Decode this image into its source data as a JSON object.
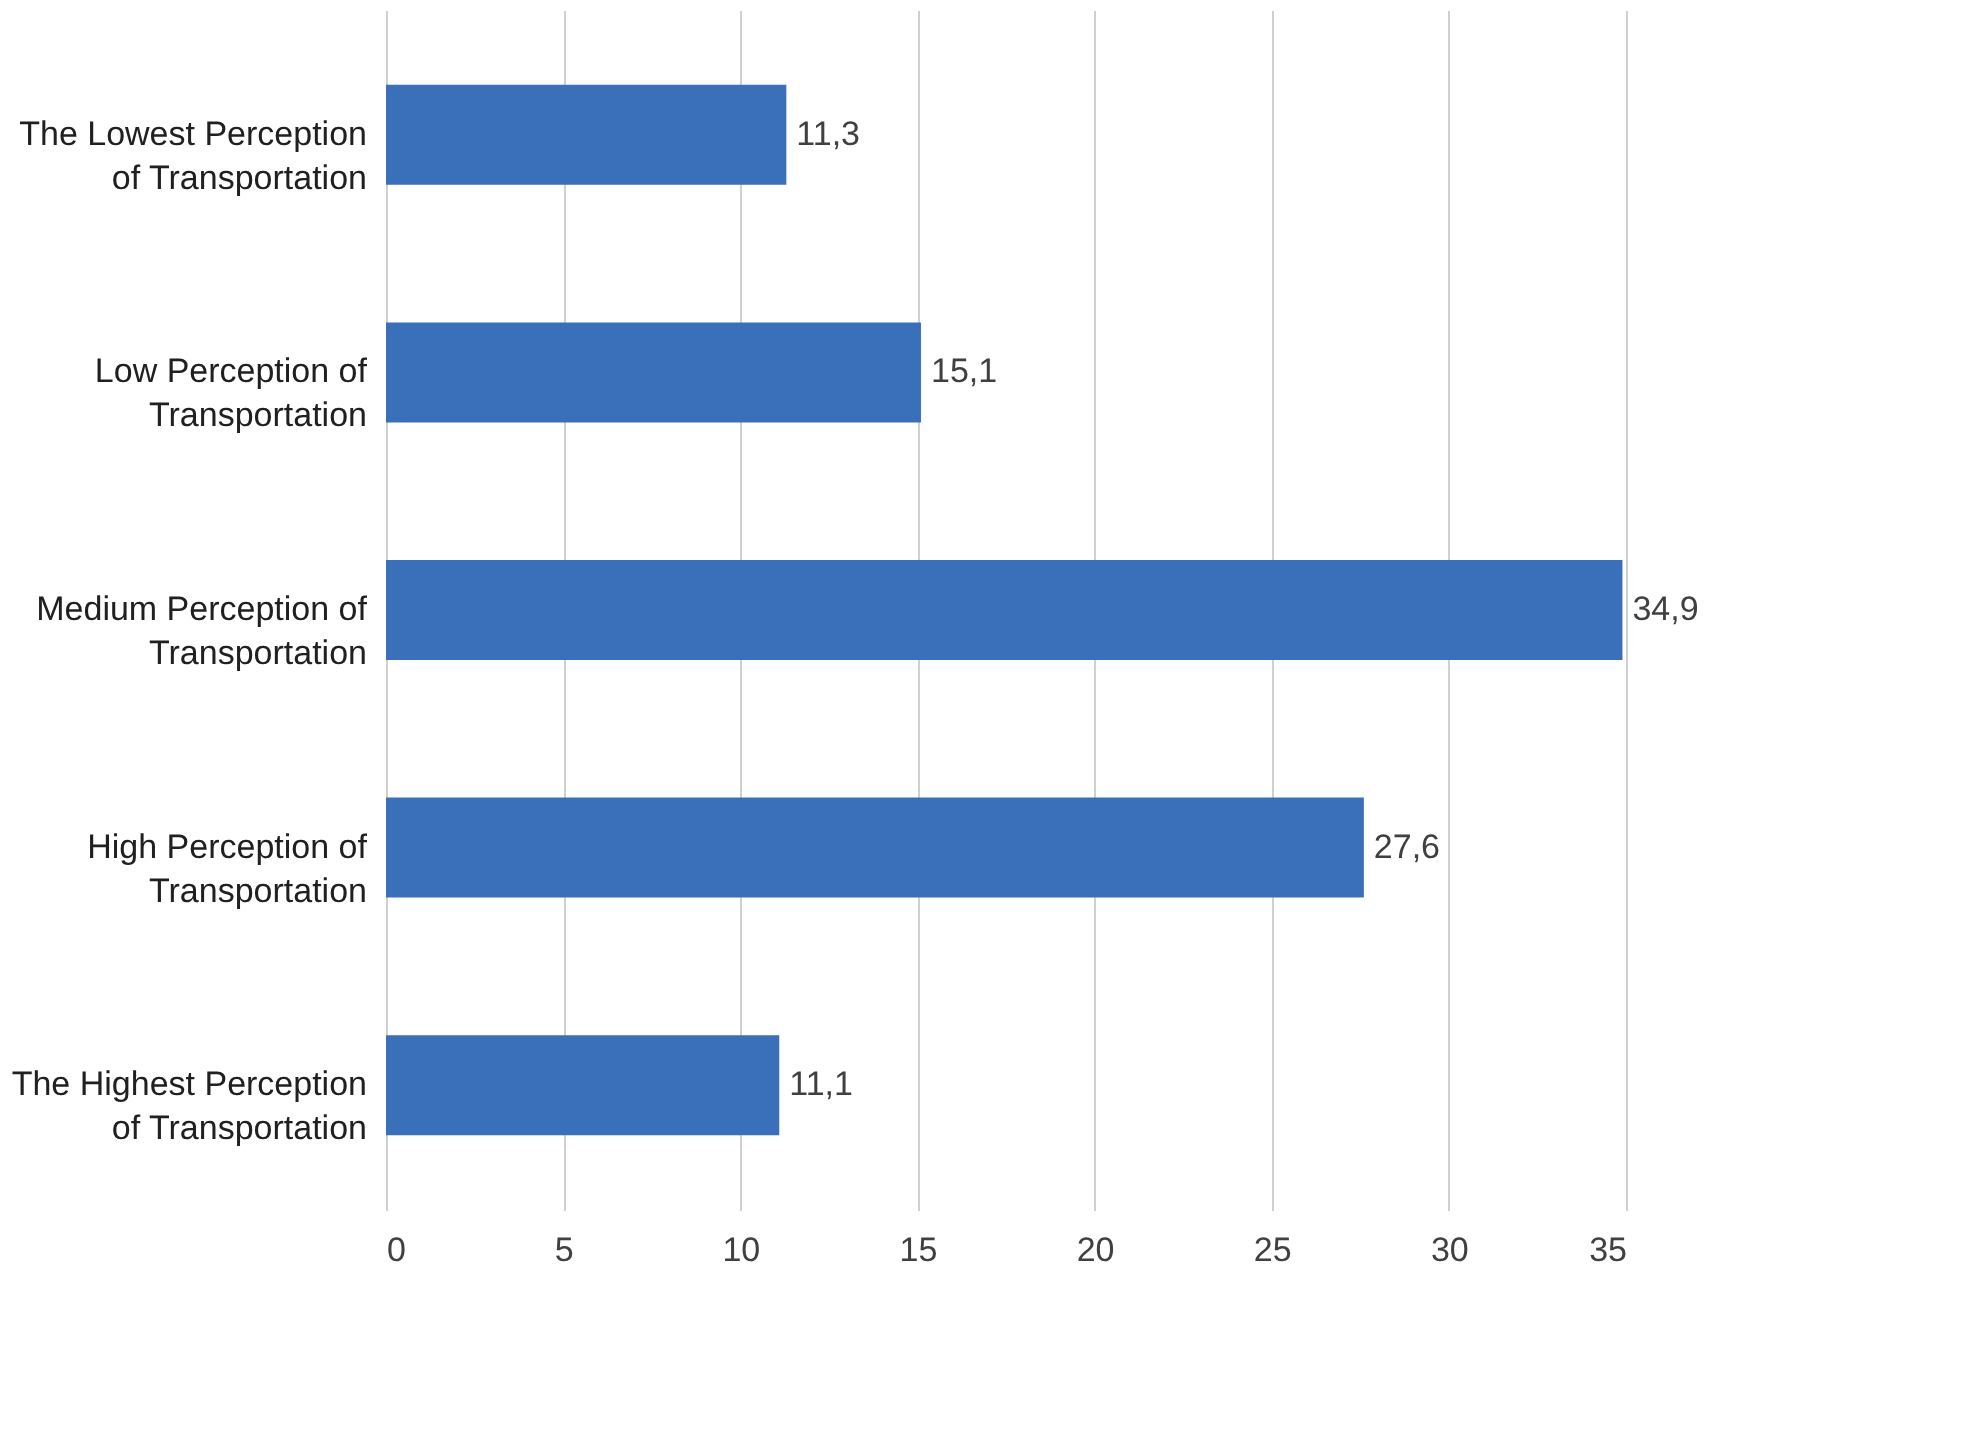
{
  "chart_data": {
    "type": "bar",
    "orientation": "horizontal",
    "categories": [
      "The Lowest Perception of Transportation",
      "Low Perception of Transportation",
      "Medium Perception of Transportation",
      "High Perception of Transportation",
      "The Highest Perception of Transportation"
    ],
    "values": [
      11.3,
      15.1,
      34.9,
      27.6,
      11.1
    ],
    "value_labels": [
      "11,3",
      "15,1",
      "34,9",
      "27,6",
      "11,1"
    ],
    "color": "#3a6fba",
    "xlim": [
      0,
      35
    ],
    "xticks": [
      0,
      5,
      10,
      15,
      20,
      25,
      30,
      35
    ],
    "grid": "x"
  }
}
